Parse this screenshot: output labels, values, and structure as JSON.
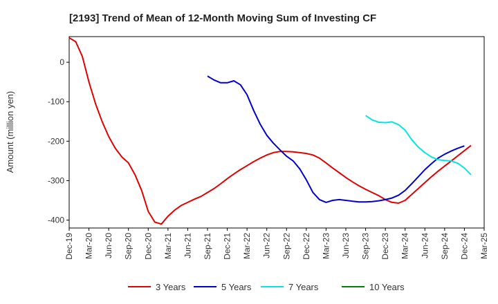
{
  "chart_data": {
    "type": "line",
    "title": "[2193]  Trend of Mean of 12-Month Moving Sum of Investing CF",
    "xlabel": "",
    "ylabel": "Amount (million yen)",
    "ylim": [
      -420,
      65
    ],
    "yticks": [
      0,
      -100,
      -200,
      -300,
      -400
    ],
    "ytick_labels": [
      "0",
      "-100",
      "-200",
      "-300",
      "-400"
    ],
    "x_month_start": "2019-12",
    "x_month_end": "2025-03",
    "xtick_labels": [
      "Dec-19",
      "Mar-20",
      "Jun-20",
      "Sep-20",
      "Dec-20",
      "Mar-21",
      "Jun-21",
      "Sep-21",
      "Dec-21",
      "Mar-22",
      "Jun-22",
      "Sep-22",
      "Dec-22",
      "Mar-23",
      "Jun-23",
      "Sep-23",
      "Dec-23",
      "Mar-24",
      "Jun-24",
      "Sep-24",
      "Dec-24",
      "Mar-25"
    ],
    "grid": true,
    "legend_position": "bottom",
    "series": [
      {
        "name": "3 Years",
        "color": "#e00000",
        "start_month": 0,
        "values": [
          62,
          52,
          15,
          -50,
          -105,
          -150,
          -188,
          -218,
          -240,
          -255,
          -285,
          -325,
          -378,
          -405,
          -410,
          -390,
          -375,
          -363,
          -355,
          -347,
          -340,
          -330,
          -320,
          -308,
          -295,
          -283,
          -272,
          -262,
          -252,
          -243,
          -235,
          -229,
          -226,
          -226,
          -227,
          -229,
          -231,
          -235,
          -243,
          -255,
          -268,
          -280,
          -292,
          -303,
          -313,
          -322,
          -330,
          -338,
          -348,
          -355,
          -357,
          -350,
          -335,
          -320,
          -305,
          -290,
          -276,
          -263,
          -250,
          -237,
          -224,
          -211
        ]
      },
      {
        "name": "5 Years",
        "color": "#0000cc",
        "start_month": 21,
        "values": [
          -35,
          -45,
          -52,
          -52,
          -47,
          -57,
          -82,
          -122,
          -157,
          -185,
          -205,
          -222,
          -238,
          -250,
          -270,
          -298,
          -330,
          -348,
          -355,
          -350,
          -348,
          -350,
          -352,
          -354,
          -354,
          -353,
          -351,
          -348,
          -344,
          -337,
          -325,
          -308,
          -290,
          -272,
          -257,
          -243,
          -233,
          -225,
          -218,
          -212
        ]
      },
      {
        "name": "7 Years",
        "color": "#00e6e6",
        "start_month": 45,
        "values": [
          -135,
          -146,
          -152,
          -153,
          -151,
          -158,
          -172,
          -196,
          -215,
          -229,
          -240,
          -247,
          -249,
          -250,
          -256,
          -268,
          -285
        ]
      },
      {
        "name": "10 Years",
        "color": "#008000",
        "start_month": 0,
        "values": []
      }
    ]
  }
}
